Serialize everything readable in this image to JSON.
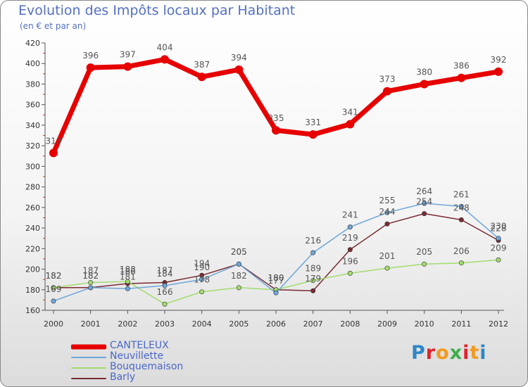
{
  "header": {
    "title": "Evolution des Impôts locaux par Habitant",
    "subtitle": "(en € et par an)"
  },
  "logo": {
    "text": "Proxiti",
    "colors": [
      "#2e86c8",
      "#e0222a",
      "#f29a1f",
      "#3fae49",
      "#e0222a",
      "#f29a1f",
      "#2e86c8"
    ]
  },
  "chart_data": {
    "type": "line",
    "title": "Evolution des Impôts locaux par Habitant",
    "subtitle": "(en € et par an)",
    "xlabel": "",
    "ylabel": "",
    "x": [
      "2000",
      "2001",
      "2002",
      "2003",
      "2004",
      "2005",
      "2006",
      "2007",
      "2008",
      "2009",
      "2010",
      "2011",
      "2012"
    ],
    "ylim": [
      160,
      420
    ],
    "yticks": [
      160,
      180,
      200,
      220,
      240,
      260,
      280,
      300,
      320,
      340,
      360,
      380,
      400,
      420
    ],
    "grid": false,
    "legend": "bottom-left",
    "series": [
      {
        "name": "CANTELEUX",
        "color": "#e60000",
        "values": [
          313,
          396,
          397,
          404,
          387,
          394,
          335,
          331,
          341,
          373,
          380,
          386,
          392
        ],
        "labels": [
          "313",
          "396",
          "397",
          "404",
          "387",
          "394",
          "335",
          "331",
          "341",
          "373",
          "380",
          "386",
          "392"
        ]
      },
      {
        "name": "Neuvillette",
        "color": "#6ea6d8",
        "values": [
          169,
          182,
          181,
          184,
          190,
          205,
          177,
          216,
          241,
          255,
          264,
          261,
          230
        ],
        "labels": [
          "169",
          "182",
          "181",
          "184",
          "190",
          "205",
          "177",
          "216",
          "241",
          "255",
          "264",
          "261",
          "230"
        ]
      },
      {
        "name": "Bouquemaison",
        "color": "#a3dc6e",
        "values": [
          182,
          187,
          188,
          166,
          178,
          182,
          180,
          189,
          196,
          201,
          205,
          206,
          209
        ],
        "labels": [
          "182",
          "187",
          "188",
          "166",
          "178",
          "182",
          "180",
          "189",
          "196",
          "201",
          "205",
          "206",
          "209"
        ]
      },
      {
        "name": "Barly",
        "color": "#7a2b33",
        "values": [
          182,
          182,
          186,
          187,
          194,
          205,
          180,
          179,
          219,
          244,
          254,
          248,
          228
        ],
        "labels": [
          "182",
          "182",
          "186",
          "187",
          "194",
          "205",
          "180",
          "179",
          "219",
          "244",
          "254",
          "248",
          "228"
        ]
      }
    ]
  }
}
